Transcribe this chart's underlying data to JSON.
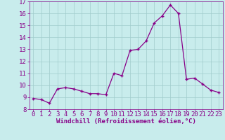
{
  "x": [
    0,
    1,
    2,
    3,
    4,
    5,
    6,
    7,
    8,
    9,
    10,
    11,
    12,
    13,
    14,
    15,
    16,
    17,
    18,
    19,
    20,
    21,
    22,
    23
  ],
  "y": [
    8.9,
    8.8,
    8.5,
    9.7,
    9.8,
    9.7,
    9.5,
    9.3,
    9.3,
    9.2,
    11.0,
    10.8,
    12.9,
    13.0,
    13.7,
    15.2,
    15.8,
    16.7,
    16.0,
    10.5,
    10.6,
    10.1,
    9.6,
    9.4
  ],
  "line_color": "#880088",
  "marker": "+",
  "marker_color": "#880088",
  "bg_color": "#c8ecec",
  "grid_color": "#a0cccc",
  "xlabel": "Windchill (Refroidissement éolien,°C)",
  "xlabel_color": "#880088",
  "tick_color": "#880088",
  "ylim": [
    8,
    17
  ],
  "xlim": [
    -0.5,
    23.5
  ],
  "yticks": [
    8,
    9,
    10,
    11,
    12,
    13,
    14,
    15,
    16,
    17
  ],
  "xticks": [
    0,
    1,
    2,
    3,
    4,
    5,
    6,
    7,
    8,
    9,
    10,
    11,
    12,
    13,
    14,
    15,
    16,
    17,
    18,
    19,
    20,
    21,
    22,
    23
  ],
  "font_size_label": 6.5,
  "font_size_tick": 6.5
}
